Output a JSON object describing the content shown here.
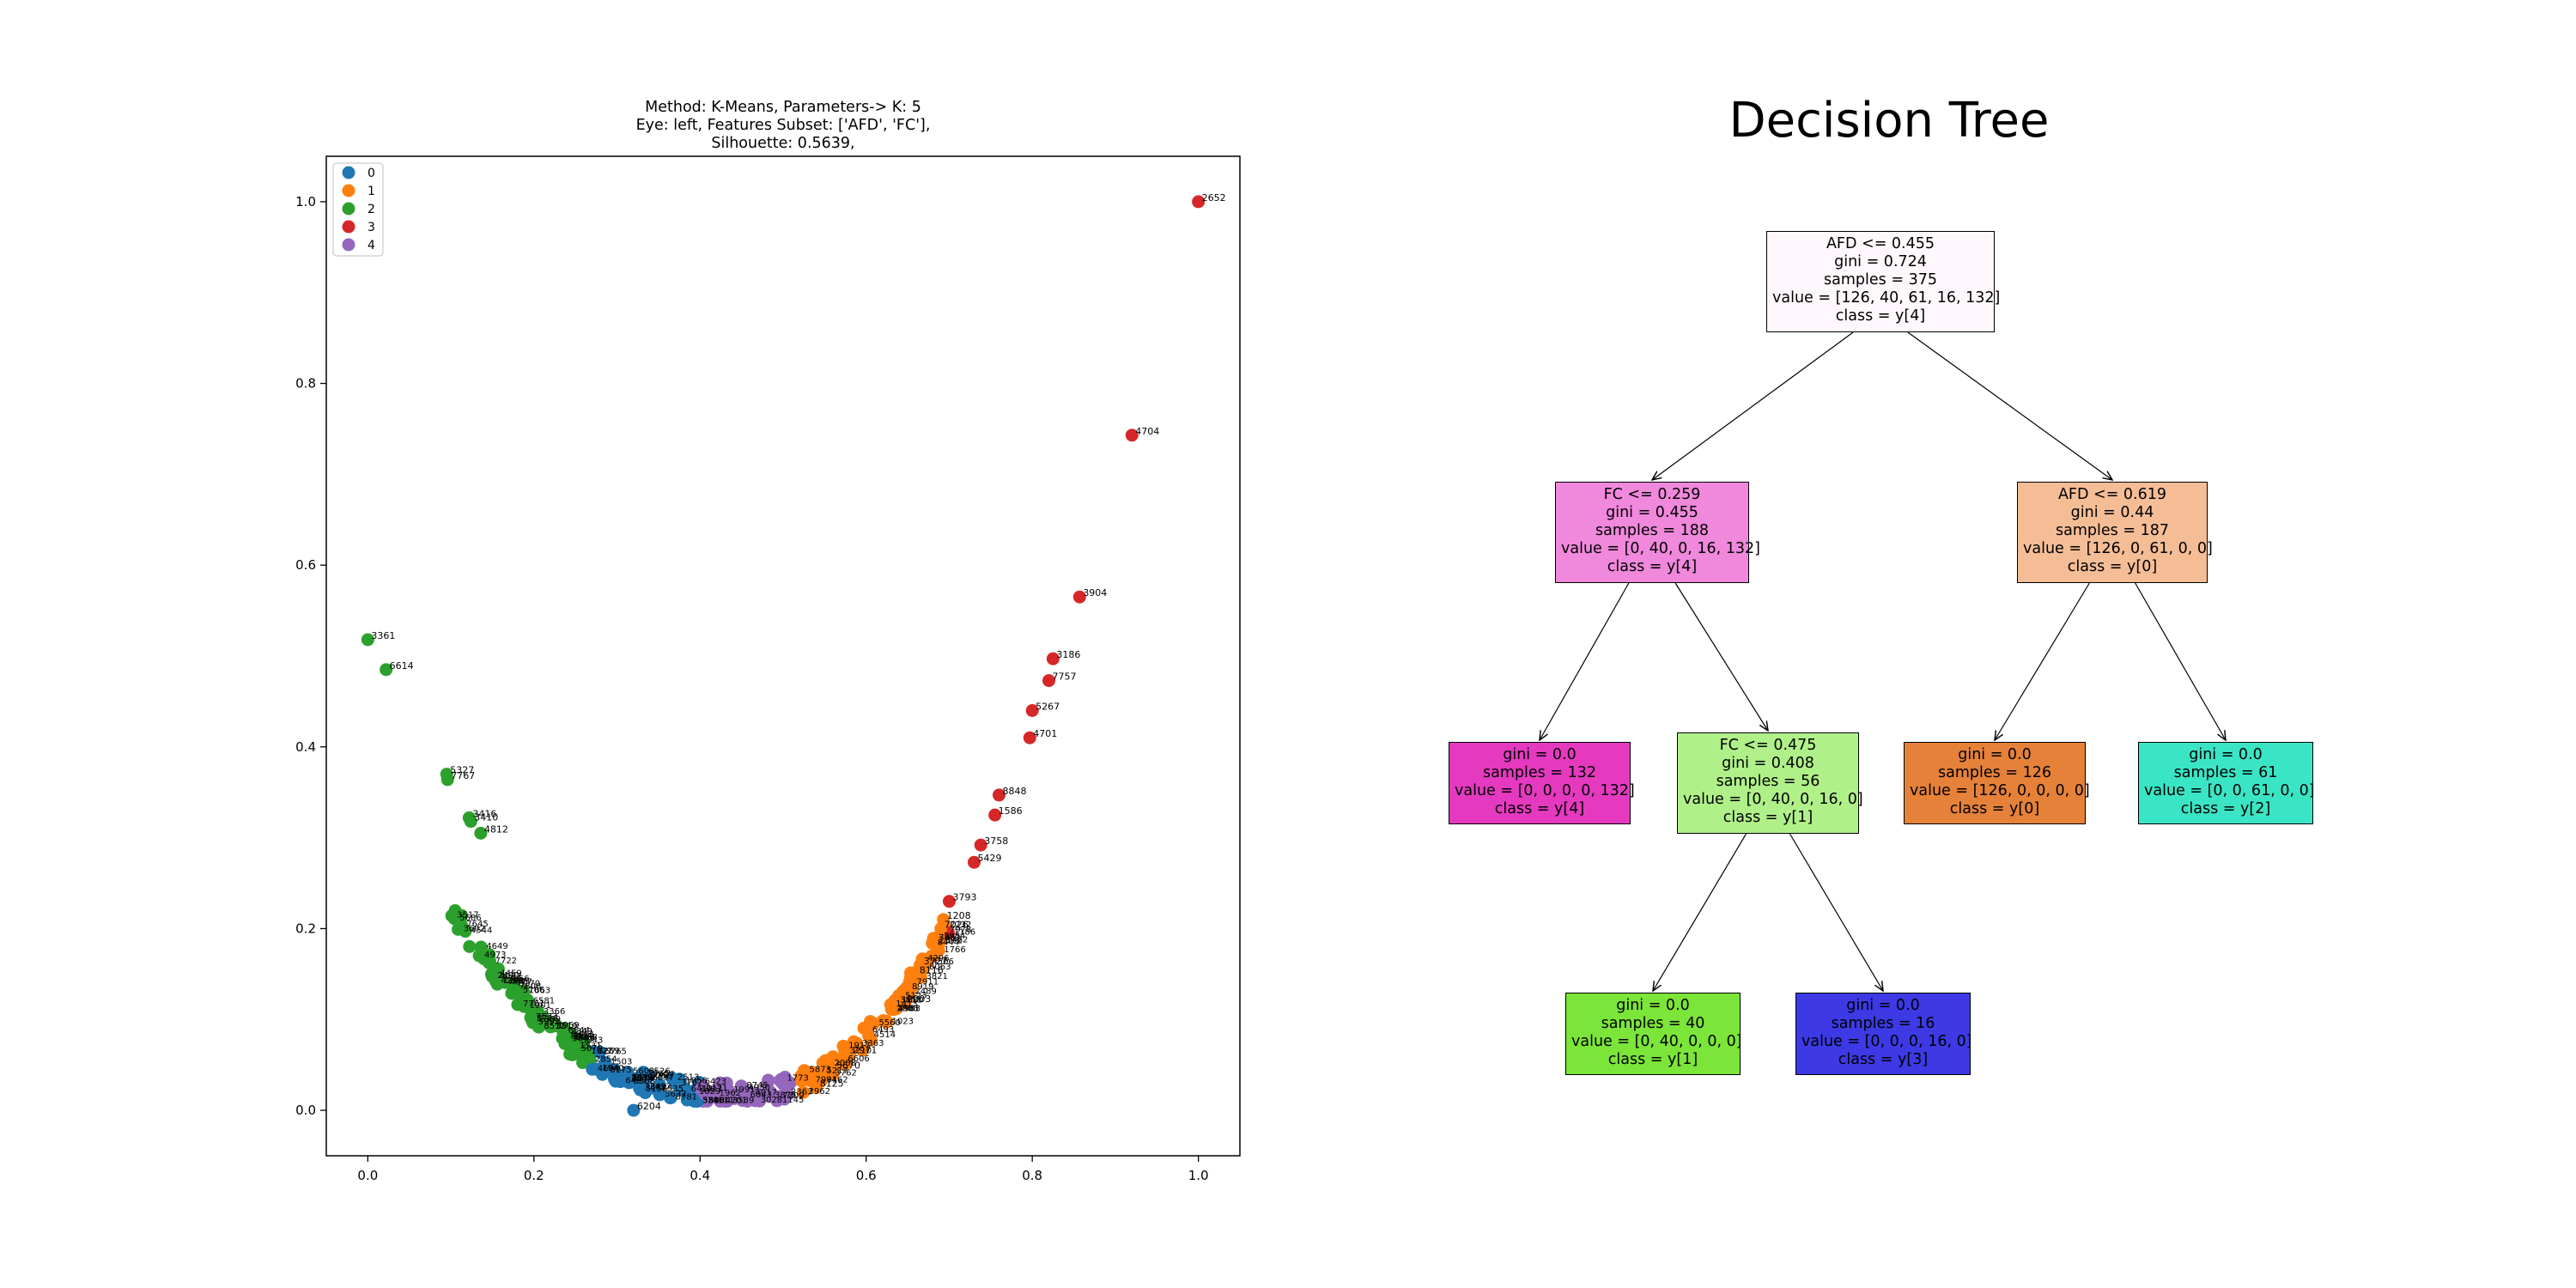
{
  "chart_data": [
    {
      "type": "scatter",
      "title_lines": [
        "Method: K-Means, Parameters-> K: 5",
        "Eye: left, Features Subset: ['AFD', 'FC'],",
        "Silhouette: 0.5639,"
      ],
      "xlim": [
        -0.05,
        1.05
      ],
      "ylim": [
        -0.05,
        1.05
      ],
      "xticks": [
        "0.0",
        "0.2",
        "0.4",
        "0.6",
        "0.8",
        "1.0"
      ],
      "yticks": [
        "0.0",
        "0.2",
        "0.4",
        "0.6",
        "0.8",
        "1.0"
      ],
      "grid": false,
      "legend": {
        "placement": "top-left",
        "entries": [
          {
            "label": "0",
            "color": "#1f77b4"
          },
          {
            "label": "1",
            "color": "#ff7f0e"
          },
          {
            "label": "2",
            "color": "#2ca02c"
          },
          {
            "label": "3",
            "color": "#d62728"
          },
          {
            "label": "4",
            "color": "#9467bd"
          }
        ]
      },
      "labeled_points": [
        {
          "x": 1.0,
          "y": 1.0,
          "cluster": 3,
          "label": "2652"
        },
        {
          "x": 0.92,
          "y": 0.743,
          "cluster": 3,
          "label": "4704"
        },
        {
          "x": 0.857,
          "y": 0.565,
          "cluster": 3,
          "label": "3904"
        },
        {
          "x": 0.825,
          "y": 0.497,
          "cluster": 3,
          "label": "3186"
        },
        {
          "x": 0.82,
          "y": 0.473,
          "cluster": 3,
          "label": "7757"
        },
        {
          "x": 0.8,
          "y": 0.44,
          "cluster": 3,
          "label": "5267"
        },
        {
          "x": 0.797,
          "y": 0.41,
          "cluster": 3,
          "label": "4701"
        },
        {
          "x": 0.76,
          "y": 0.347,
          "cluster": 3,
          "label": "8848"
        },
        {
          "x": 0.755,
          "y": 0.325,
          "cluster": 3,
          "label": "1586"
        },
        {
          "x": 0.738,
          "y": 0.292,
          "cluster": 3,
          "label": "3758"
        },
        {
          "x": 0.73,
          "y": 0.273,
          "cluster": 3,
          "label": "5429"
        },
        {
          "x": 0.7,
          "y": 0.23,
          "cluster": 3,
          "label": "3793"
        },
        {
          "x": 0.693,
          "y": 0.21,
          "cluster": 1,
          "label": "1208"
        },
        {
          "x": 0.69,
          "y": 0.2,
          "cluster": 1,
          "label": "7026"
        },
        {
          "x": 0.683,
          "y": 0.183,
          "cluster": 1,
          "label": "2572"
        },
        {
          "x": 0.665,
          "y": 0.16,
          "cluster": 1,
          "label": "3727"
        },
        {
          "x": 0.66,
          "y": 0.15,
          "cluster": 1,
          "label": "8116"
        },
        {
          "x": 0.645,
          "y": 0.118,
          "cluster": 1,
          "label": "2003"
        },
        {
          "x": 0.58,
          "y": 0.062,
          "cluster": 1,
          "label": "2971"
        },
        {
          "x": 0.56,
          "y": 0.045,
          "cluster": 1,
          "label": "5670"
        },
        {
          "x": 0.54,
          "y": 0.025,
          "cluster": 1,
          "label": "8125"
        },
        {
          "x": 0.0,
          "y": 0.518,
          "cluster": 2,
          "label": "3361"
        },
        {
          "x": 0.022,
          "y": 0.485,
          "cluster": 2,
          "label": "6614"
        },
        {
          "x": 0.095,
          "y": 0.37,
          "cluster": 2,
          "label": "5327"
        },
        {
          "x": 0.096,
          "y": 0.364,
          "cluster": 2,
          "label": "7767"
        },
        {
          "x": 0.122,
          "y": 0.322,
          "cluster": 2,
          "label": "3416"
        },
        {
          "x": 0.124,
          "y": 0.318,
          "cluster": 2,
          "label": "3410"
        },
        {
          "x": 0.136,
          "y": 0.305,
          "cluster": 2,
          "label": "4812"
        },
        {
          "x": 0.32,
          "y": 0.0,
          "cluster": 0,
          "label": "6204"
        }
      ]
    }
  ],
  "decision_tree": {
    "title": "Decision Tree",
    "nodes": [
      {
        "id": "n0",
        "color": "#fef8fd",
        "lines": [
          "AFD <= 0.455",
          "gini = 0.724",
          "samples = 375",
          "value = [126, 40, 61, 16, 132]",
          "class = y[4]"
        ]
      },
      {
        "id": "n1",
        "color": "#f088dc",
        "lines": [
          "FC <= 0.259",
          "gini = 0.455",
          "samples = 188",
          "value = [0, 40, 0, 16, 132]",
          "class = y[4]"
        ]
      },
      {
        "id": "n2",
        "color": "#f4bd96",
        "lines": [
          "AFD <= 0.619",
          "gini = 0.44",
          "samples = 187",
          "value = [126, 0, 61, 0, 0]",
          "class = y[0]"
        ]
      },
      {
        "id": "n3",
        "color": "#e539c0",
        "lines": [
          "gini = 0.0",
          "samples = 132",
          "value = [0, 0, 0, 0, 132]",
          "class = y[4]"
        ]
      },
      {
        "id": "n4",
        "color": "#b0f089",
        "lines": [
          "FC <= 0.475",
          "gini = 0.408",
          "samples = 56",
          "value = [0, 40, 0, 16, 0]",
          "class = y[1]"
        ]
      },
      {
        "id": "n5",
        "color": "#e58139",
        "lines": [
          "gini = 0.0",
          "samples = 126",
          "value = [126, 0, 0, 0, 0]",
          "class = y[0]"
        ]
      },
      {
        "id": "n6",
        "color": "#39e5c5",
        "lines": [
          "gini = 0.0",
          "samples = 61",
          "value = [0, 0, 61, 0, 0]",
          "class = y[2]"
        ]
      },
      {
        "id": "n7",
        "color": "#7be539",
        "lines": [
          "gini = 0.0",
          "samples = 40",
          "value = [0, 40, 0, 0, 0]",
          "class = y[1]"
        ]
      },
      {
        "id": "n8",
        "color": "#3c39e5",
        "lines": [
          "gini = 0.0",
          "samples = 16",
          "value = [0, 0, 0, 16, 0]",
          "class = y[3]"
        ]
      }
    ],
    "edges": [
      [
        "n0",
        "n1"
      ],
      [
        "n0",
        "n2"
      ],
      [
        "n1",
        "n3"
      ],
      [
        "n1",
        "n4"
      ],
      [
        "n2",
        "n5"
      ],
      [
        "n2",
        "n6"
      ],
      [
        "n4",
        "n7"
      ],
      [
        "n4",
        "n8"
      ]
    ]
  }
}
